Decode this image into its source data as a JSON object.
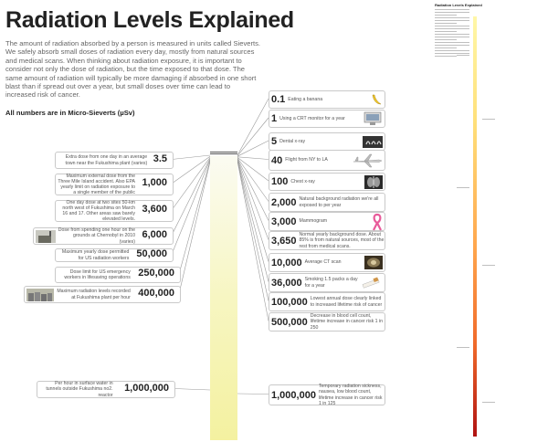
{
  "title": "Radiation Levels Explained",
  "intro": "The amount of radiation absorbed by a person is measured in units called Sieverts. We safely absorb small doses of radiation every day, mostly from natural sources and medical scans. When thinking about radiation exposure, it is important to consider not only the dose of radiation, but the time exposed to that dose. The same amount of radiation will typically be more damaging if absorbed in one short blast than if spread out over a year, but small doses over time can lead to increased risk of cancer.",
  "units_note": "All numbers are in Micro-Sieverts (µSv)",
  "left_items": [
    {
      "value": "3.5",
      "text": "Extra dose from one day in an average town near the Fukushima plant (varies)",
      "icon": ""
    },
    {
      "value": "1,000",
      "text": "Maximum external dose from the Three Mile Island accident. Also EPA yearly limit on radiation exposure to a single member of the public",
      "icon": ""
    },
    {
      "value": "3,600",
      "text": "One day dose at two sites 50-km north west of Fukushima on March 16 and 17. Other areas saw barely elevated levels.",
      "icon": ""
    },
    {
      "value": "6,000",
      "text": "Dose from spending one hour on the grounds at Chernobyl in 2010 (varies)",
      "icon": "chernobyl-plant-icon"
    },
    {
      "value": "50,000",
      "text": "Maximum yearly dose permitted for US radiation workers",
      "icon": ""
    },
    {
      "value": "250,000",
      "text": "Dose limit for US emergency workers in lifesaving operations",
      "icon": ""
    },
    {
      "value": "400,000",
      "text": "Maximum radiation levels recorded at Fukushima plant per hour",
      "icon": "fukushima-plant-icon"
    },
    {
      "value": "1,000,000",
      "text": "Per hour in surface water in tunnels outside Fukushima no2. reactor",
      "icon": ""
    }
  ],
  "right_items": [
    {
      "value": "0.1",
      "text": "Eating a banana",
      "icon": "banana-icon"
    },
    {
      "value": "1",
      "text": "Using a CRT monitor for a year",
      "icon": "crt-monitor-icon"
    },
    {
      "value": "5",
      "text": "Dental x-ray",
      "icon": "dental-xray-icon"
    },
    {
      "value": "40",
      "text": "Flight from NY to LA",
      "icon": "airplane-icon"
    },
    {
      "value": "100",
      "text": "Chest x-ray",
      "icon": "chest-xray-icon"
    },
    {
      "value": "2,000",
      "text": "Natural background radiation we're all exposed to per year",
      "icon": ""
    },
    {
      "value": "3,000",
      "text": "Mammogram",
      "icon": "pink-ribbon-icon"
    },
    {
      "value": "3,650",
      "text": "Normal yearly background dose. About 85% is from natural sources, most of the rest from medical scans.",
      "icon": ""
    },
    {
      "value": "10,000",
      "text": "Average CT scan",
      "icon": "ct-scan-icon"
    },
    {
      "value": "36,000",
      "text": "Smoking 1.5 packs a day for a year",
      "icon": "cigarette-icon"
    },
    {
      "value": "100,000",
      "text": "Lowest annual dose clearly linked to increased lifetime risk of cancer",
      "icon": ""
    },
    {
      "value": "500,000",
      "text": "Decrease in blood cell count, lifetime increase in cancer risk 1 in 250",
      "icon": ""
    },
    {
      "value": "1,000,000",
      "text": "Temporary radiation sickness, nausea, low blood count, lifetime increase in cancer risk 1 in 125",
      "icon": ""
    }
  ],
  "thumbnail": {
    "title": "Radiation Levels Explained"
  },
  "colors": {
    "bar_top": "#fbfbf2",
    "bar_bottom": "#f4f1a0",
    "scale_top": "#fff7a8",
    "scale_bottom": "#b01212",
    "ribbon": "#e85a9a"
  }
}
